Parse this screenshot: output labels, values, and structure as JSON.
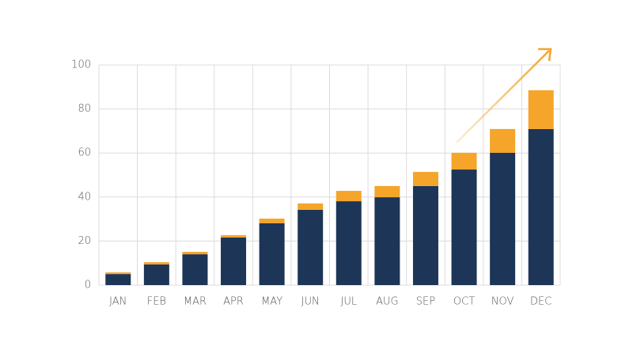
{
  "chart_data": {
    "type": "stacked-bar",
    "categories": [
      "JAN",
      "FEB",
      "MAR",
      "APR",
      "MAY",
      "JUN",
      "JUL",
      "AUG",
      "SEP",
      "OCT",
      "NOV",
      "DEC"
    ],
    "series": [
      {
        "color": "#1d3557",
        "values": [
          5.0,
          9.4,
          14.0,
          21.6,
          28.1,
          34.2,
          38.1,
          39.9,
          45.0,
          52.5,
          60.1,
          70.9
        ]
      },
      {
        "color": "#f4a52a",
        "values": [
          0.8,
          1.0,
          1.1,
          1.1,
          2.1,
          2.9,
          4.7,
          5.1,
          6.4,
          7.6,
          10.8,
          17.6
        ]
      }
    ],
    "ylim": [
      0,
      100
    ],
    "yticks": [
      0,
      20,
      40,
      60,
      80,
      100
    ],
    "grid": true
  }
}
